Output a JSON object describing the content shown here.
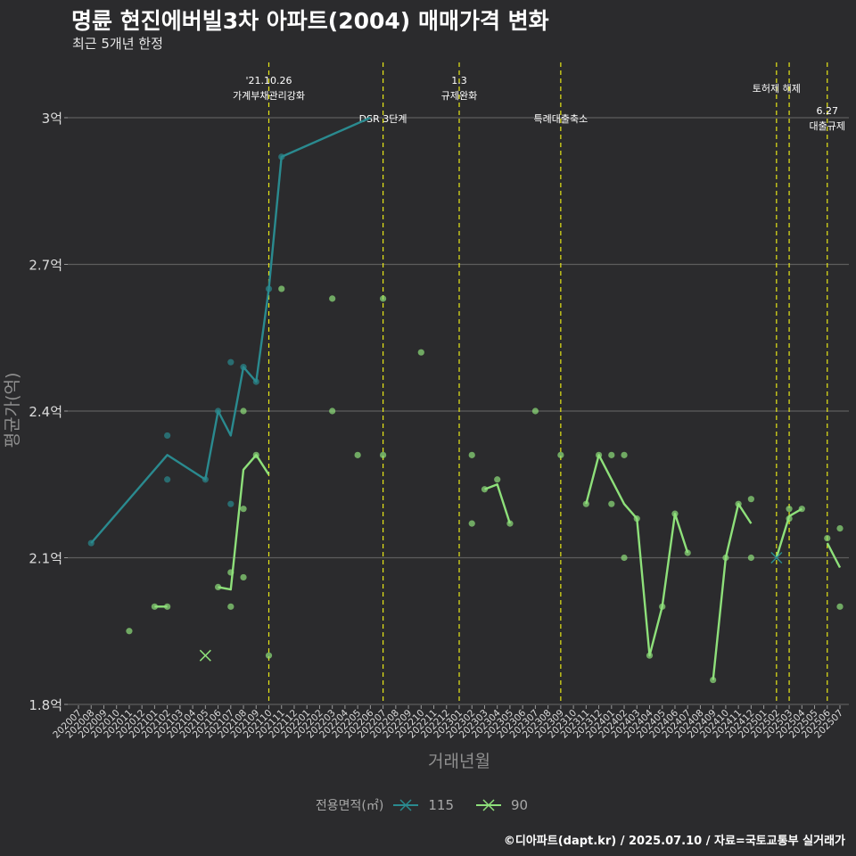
{
  "title": "명륜 현진에버빌3차 아파트(2004) 매매가격 변화",
  "subtitle": "최근 5개년 한정",
  "caption": "©디아파트(dapt.kr) / 2025.07.10 / 자료=국토교통부 실거래가",
  "colors": {
    "background": "#2b2b2d",
    "grid": "#5e5e5e",
    "series_115": "#2a8a8f",
    "series_90": "#8ee07a",
    "vline": "#e8e817"
  },
  "chart_data": {
    "type": "line",
    "xlabel": "거래년월",
    "ylabel": "평균가(억)",
    "ylim": [
      1.8,
      3.0
    ],
    "y_ticks": [
      1.8,
      2.1,
      2.4,
      2.7,
      3.0
    ],
    "y_tick_labels": [
      "1.8억",
      "2.1억",
      "2.4억",
      "2.7억",
      "3억"
    ],
    "x_categories": [
      "202007",
      "202008",
      "202009",
      "202010",
      "202011",
      "202012",
      "202101",
      "202102",
      "202103",
      "202104",
      "202105",
      "202106",
      "202107",
      "202108",
      "202109",
      "202110",
      "202111",
      "202112",
      "202201",
      "202202",
      "202203",
      "202204",
      "202205",
      "202206",
      "202207",
      "202208",
      "202209",
      "202210",
      "202211",
      "202212",
      "202301",
      "202302",
      "202303",
      "202304",
      "202305",
      "202306",
      "202307",
      "202308",
      "202309",
      "202310",
      "202311",
      "202312",
      "202401",
      "202402",
      "202403",
      "202404",
      "202405",
      "202406",
      "202407",
      "202408",
      "202409",
      "202410",
      "202411",
      "202412",
      "202501",
      "202502",
      "202503",
      "202504",
      "202505",
      "202506",
      "202507"
    ],
    "legend_title": "전용면적(㎡)",
    "series": [
      {
        "name": "115",
        "line": [
          [
            "202008",
            2.13
          ],
          [
            "202102",
            2.31
          ],
          [
            "202105",
            2.26
          ],
          [
            "202106",
            2.4
          ],
          [
            "202107",
            2.35
          ],
          [
            "202108",
            2.49
          ],
          [
            "202109",
            2.46
          ],
          [
            "202110",
            2.65
          ],
          [
            "202111",
            2.92
          ],
          [
            "202206",
            3.0
          ]
        ],
        "points": [
          [
            "202008",
            2.13
          ],
          [
            "202102",
            2.35
          ],
          [
            "202102",
            2.26
          ],
          [
            "202105",
            2.26
          ],
          [
            "202106",
            2.4
          ],
          [
            "202107",
            2.5
          ],
          [
            "202107",
            2.21
          ],
          [
            "202108",
            2.49
          ],
          [
            "202109",
            2.46
          ],
          [
            "202110",
            2.65
          ],
          [
            "202111",
            2.92
          ]
        ],
        "cross": [
          [
            "202502",
            2.1
          ]
        ]
      },
      {
        "name": "90",
        "line_segments": [
          [
            [
              "202101",
              2.0
            ],
            [
              "202102",
              2.0
            ]
          ],
          [
            [
              "202106",
              2.04
            ],
            [
              "202107",
              2.035
            ],
            [
              "202108",
              2.28
            ],
            [
              "202109",
              2.31
            ],
            [
              "202110",
              2.27
            ]
          ],
          [
            [
              "202303",
              2.24
            ],
            [
              "202304",
              2.25
            ],
            [
              "202305",
              2.17
            ]
          ],
          [
            [
              "202311",
              2.21
            ],
            [
              "202312",
              2.31
            ],
            [
              "202402",
              2.21
            ],
            [
              "202403",
              2.18
            ],
            [
              "202404",
              1.9
            ],
            [
              "202405",
              2.0
            ],
            [
              "202406",
              2.19
            ],
            [
              "202407",
              2.11
            ]
          ],
          [
            [
              "202409",
              1.85
            ],
            [
              "202410",
              2.1
            ],
            [
              "202411",
              2.21
            ],
            [
              "202412",
              2.17
            ]
          ],
          [
            [
              "202502",
              2.1
            ],
            [
              "202503",
              2.185
            ],
            [
              "202504",
              2.2
            ]
          ],
          [
            [
              "202506",
              2.13
            ],
            [
              "202507",
              2.08
            ]
          ]
        ],
        "points": [
          [
            "202011",
            1.95
          ],
          [
            "202101",
            2.0
          ],
          [
            "202102",
            2.0
          ],
          [
            "202106",
            2.04
          ],
          [
            "202107",
            2.07
          ],
          [
            "202107",
            2.0
          ],
          [
            "202108",
            2.4
          ],
          [
            "202108",
            2.2
          ],
          [
            "202108",
            2.06
          ],
          [
            "202109",
            2.31
          ],
          [
            "202110",
            1.9
          ],
          [
            "202111",
            2.65
          ],
          [
            "202203",
            2.63
          ],
          [
            "202203",
            2.4
          ],
          [
            "202205",
            2.31
          ],
          [
            "202207",
            2.63
          ],
          [
            "202207",
            2.31
          ],
          [
            "202210",
            2.52
          ],
          [
            "202302",
            2.31
          ],
          [
            "202302",
            2.17
          ],
          [
            "202303",
            2.24
          ],
          [
            "202304",
            2.26
          ],
          [
            "202305",
            2.17
          ],
          [
            "202307",
            2.4
          ],
          [
            "202309",
            2.31
          ],
          [
            "202311",
            2.21
          ],
          [
            "202312",
            2.31
          ],
          [
            "202401",
            2.31
          ],
          [
            "202401",
            2.21
          ],
          [
            "202402",
            2.31
          ],
          [
            "202402",
            2.1
          ],
          [
            "202403",
            2.18
          ],
          [
            "202404",
            1.9
          ],
          [
            "202405",
            2.0
          ],
          [
            "202406",
            2.19
          ],
          [
            "202407",
            2.11
          ],
          [
            "202409",
            1.85
          ],
          [
            "202410",
            2.1
          ],
          [
            "202411",
            2.21
          ],
          [
            "202412",
            2.22
          ],
          [
            "202412",
            2.1
          ],
          [
            "202503",
            2.2
          ],
          [
            "202503",
            2.18
          ],
          [
            "202504",
            2.2
          ],
          [
            "202506",
            2.14
          ],
          [
            "202507",
            2.16
          ],
          [
            "202507",
            2.0
          ]
        ],
        "cross": [
          [
            "202105",
            1.9
          ]
        ]
      }
    ],
    "events": [
      {
        "x": "202110",
        "lines": [
          "'21.10.26",
          "가계부채관리강화"
        ],
        "level": 0
      },
      {
        "x": "202207",
        "lines": [
          "DSR 3단계"
        ],
        "level": 2
      },
      {
        "x": "202301",
        "lines": [
          "1.3",
          "규제완화"
        ],
        "level": 0
      },
      {
        "x": "202309",
        "lines": [
          "특례대출축소"
        ],
        "level": 2
      },
      {
        "x": "202502",
        "lines": [
          "토허제 해제"
        ],
        "level": 1
      },
      {
        "x": "202503",
        "lines": [],
        "level": 1
      },
      {
        "x": "202506",
        "lines": [
          "6.27",
          "대출규제"
        ],
        "level": 3
      }
    ]
  }
}
